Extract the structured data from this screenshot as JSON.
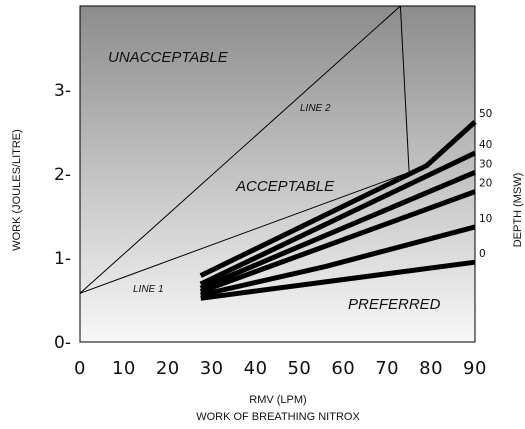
{
  "chart_data": {
    "type": "line",
    "xlabel": "RMV (LPM)",
    "ylabel": "WORK (JOULES/LITRE)",
    "right_label": "DEPTH (MSW)",
    "subtitle": "WORK OF BREATHING NITROX",
    "xlim": [
      0,
      90
    ],
    "ylim": [
      0,
      4
    ],
    "x_ticks": [
      "0",
      "10",
      "20",
      "30",
      "40",
      "50",
      "60",
      "70",
      "80",
      "90"
    ],
    "y_ticks": [
      {
        "label": "0-",
        "value": 0
      },
      {
        "label": "1-",
        "value": 1
      },
      {
        "label": "2-",
        "value": 2
      },
      {
        "label": "3-",
        "value": 3
      }
    ],
    "regions": {
      "unacceptable": "UNACCEPTABLE",
      "acceptable": "ACCEPTABLE",
      "preferred": "PREFERRED"
    },
    "reference_lines": [
      {
        "name": "LINE 1",
        "points": [
          [
            0,
            0.58
          ],
          [
            74,
            2.0
          ]
        ]
      },
      {
        "name": "LINE 2",
        "points": [
          [
            0,
            0.58
          ],
          [
            73,
            4.0
          ]
        ]
      },
      {
        "name": "",
        "points": [
          [
            73,
            4.0
          ],
          [
            75,
            2.0
          ]
        ]
      }
    ],
    "series": [
      {
        "name": "0",
        "points": [
          [
            27.5,
            0.52
          ],
          [
            90,
            0.95
          ]
        ]
      },
      {
        "name": "10",
        "points": [
          [
            27.5,
            0.56
          ],
          [
            56,
            0.9
          ],
          [
            90,
            1.37
          ]
        ]
      },
      {
        "name": "20",
        "points": [
          [
            27.5,
            0.6
          ],
          [
            90,
            1.79
          ]
        ]
      },
      {
        "name": "30",
        "points": [
          [
            27.5,
            0.64
          ],
          [
            90,
            2.02
          ]
        ]
      },
      {
        "name": "40",
        "points": [
          [
            27.5,
            0.69
          ],
          [
            90,
            2.25
          ]
        ]
      },
      {
        "name": "50",
        "points": [
          [
            27.5,
            0.79
          ],
          [
            79,
            2.1
          ],
          [
            90,
            2.62
          ]
        ]
      }
    ],
    "grid": false,
    "background": "gradient grey to white",
    "line_color": "#000000"
  }
}
